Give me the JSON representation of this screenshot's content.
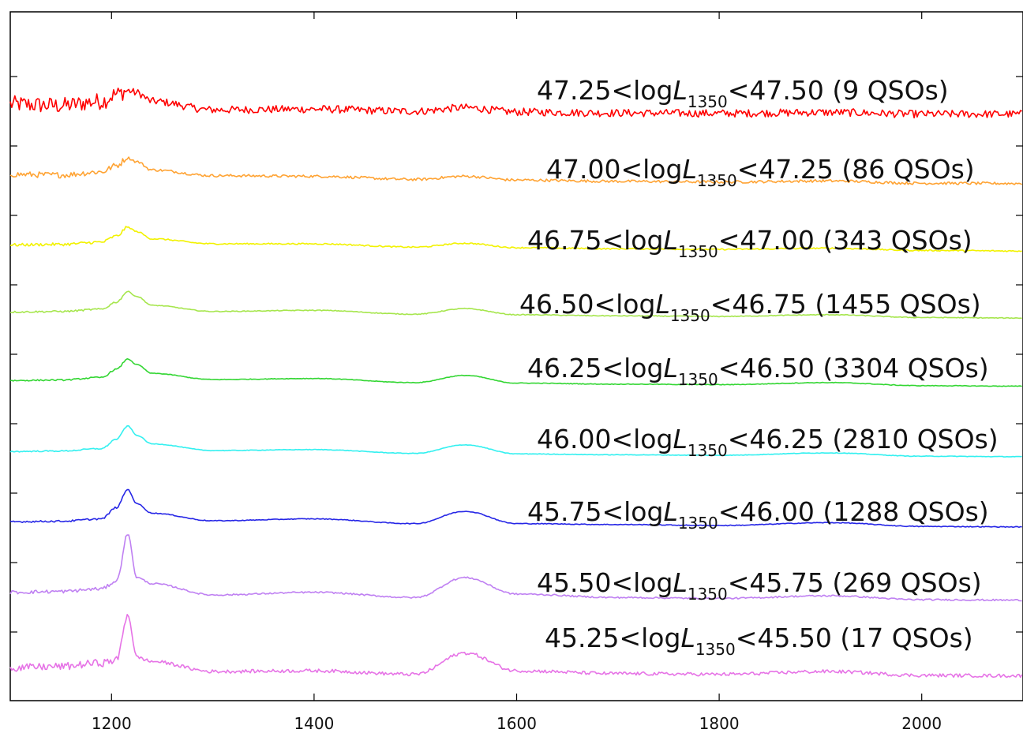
{
  "chart_data": {
    "type": "line",
    "title": "",
    "xlabel": "",
    "ylabel": "",
    "xlim": [
      1100,
      2100
    ],
    "x_ticks": [
      1200,
      1400,
      1600,
      1800,
      2000
    ],
    "x_tick_labels": [
      "1200",
      "1400",
      "1600",
      "1800",
      "2000"
    ],
    "y_ticks_count": 9,
    "y_axis_labels_shown": false,
    "grid": false,
    "legend": "inline labels beside each spectrum (right side)",
    "description": "Composite quasar spectra stacked with vertical offsets, one per luminosity bin",
    "series": [
      {
        "label_pre": "47.25<log",
        "label_var": "L",
        "label_sub": "1350",
        "label_post": "<47.50 (9 QSOs)",
        "color": "#ff0000",
        "n_qso": 9,
        "noise": 0.9,
        "x": [
          1100,
          1150,
          1190,
          1205,
          1216,
          1225,
          1240,
          1300,
          1400,
          1500,
          1549,
          1600,
          1700,
          1800,
          1909,
          2000,
          2100
        ],
        "rel_flux": [
          1.0,
          0.9,
          1.2,
          1.7,
          1.95,
          1.8,
          1.2,
          0.6,
          0.65,
          0.5,
          0.75,
          0.45,
          0.38,
          0.35,
          0.42,
          0.3,
          0.3
        ]
      },
      {
        "label_pre": "47.00<log",
        "label_var": "L",
        "label_sub": "1350",
        "label_post": "<47.25 (86 QSOs)",
        "color": "#ffa333",
        "n_qso": 86,
        "noise": 0.35,
        "x": [
          1100,
          1150,
          1190,
          1205,
          1216,
          1225,
          1240,
          1300,
          1400,
          1500,
          1549,
          1600,
          1700,
          1800,
          1909,
          2000,
          2100
        ],
        "rel_flux": [
          1.0,
          0.95,
          1.2,
          1.7,
          2.3,
          2.0,
          1.35,
          0.9,
          0.85,
          0.6,
          0.85,
          0.55,
          0.45,
          0.4,
          0.48,
          0.3,
          0.28
        ]
      },
      {
        "label_pre": "46.75<log",
        "label_var": "L",
        "label_sub": "1350",
        "label_post": "<47.00 (343 QSOs)",
        "color": "#f2f200",
        "n_qso": 343,
        "noise": 0.2,
        "x": [
          1100,
          1150,
          1190,
          1205,
          1216,
          1225,
          1240,
          1300,
          1400,
          1500,
          1549,
          1600,
          1700,
          1800,
          1909,
          2000,
          2100
        ],
        "rel_flux": [
          0.9,
          0.95,
          1.15,
          1.7,
          2.5,
          2.1,
          1.45,
          1.0,
          1.0,
          0.7,
          1.05,
          0.65,
          0.55,
          0.5,
          0.6,
          0.4,
          0.35
        ]
      },
      {
        "label_pre": "46.50<log",
        "label_var": "L",
        "label_sub": "1350",
        "label_post": "<46.75 (1455 QSOs)",
        "color": "#a6e64d",
        "n_qso": 1455,
        "noise": 0.12,
        "x": [
          1100,
          1150,
          1190,
          1205,
          1216,
          1225,
          1240,
          1300,
          1400,
          1500,
          1549,
          1600,
          1700,
          1800,
          1909,
          2000,
          2100
        ],
        "rel_flux": [
          0.9,
          0.95,
          1.15,
          1.8,
          2.75,
          2.3,
          1.5,
          0.95,
          1.05,
          0.7,
          1.2,
          0.65,
          0.55,
          0.5,
          0.65,
          0.4,
          0.35
        ]
      },
      {
        "label_pre": "46.25<log",
        "label_var": "L",
        "label_sub": "1350",
        "label_post": "<46.50 (3304 QSOs)",
        "color": "#33d633",
        "n_qso": 3304,
        "noise": 0.1,
        "x": [
          1100,
          1150,
          1190,
          1205,
          1216,
          1225,
          1240,
          1300,
          1400,
          1500,
          1549,
          1600,
          1700,
          1800,
          1909,
          2000,
          2100
        ],
        "rel_flux": [
          0.9,
          0.95,
          1.2,
          2.0,
          3.0,
          2.45,
          1.6,
          1.0,
          1.1,
          0.7,
          1.4,
          0.65,
          0.55,
          0.5,
          0.7,
          0.4,
          0.35
        ]
      },
      {
        "label_pre": "46.00<log",
        "label_var": "L",
        "label_sub": "1350",
        "label_post": "<46.25 (2810 QSOs)",
        "color": "#33f0f0",
        "n_qso": 2810,
        "noise": 0.1,
        "x": [
          1100,
          1150,
          1190,
          1205,
          1216,
          1225,
          1240,
          1300,
          1400,
          1500,
          1549,
          1600,
          1700,
          1800,
          1909,
          2000,
          2100
        ],
        "rel_flux": [
          0.9,
          0.95,
          1.2,
          2.2,
          3.6,
          2.6,
          1.7,
          1.0,
          1.1,
          0.7,
          1.6,
          0.65,
          0.55,
          0.5,
          0.75,
          0.4,
          0.35
        ]
      },
      {
        "label_pre": "45.75<log",
        "label_var": "L",
        "label_sub": "1350",
        "label_post": "<46.00 (1288 QSOs)",
        "color": "#2626e6",
        "n_qso": 1288,
        "noise": 0.14,
        "x": [
          1100,
          1150,
          1190,
          1205,
          1216,
          1225,
          1240,
          1300,
          1400,
          1500,
          1549,
          1600,
          1700,
          1800,
          1909,
          2000,
          2100
        ],
        "rel_flux": [
          0.9,
          0.95,
          1.2,
          2.4,
          4.3,
          2.8,
          1.8,
          1.0,
          1.2,
          0.7,
          2.0,
          0.7,
          0.6,
          0.5,
          0.8,
          0.4,
          0.35
        ]
      },
      {
        "label_pre": "45.50<log",
        "label_var": "L",
        "label_sub": "1350",
        "label_post": "<45.75 (269 QSOs)",
        "color": "#bf80f2",
        "n_qso": 269,
        "noise": 0.3,
        "x": [
          1100,
          1150,
          1190,
          1205,
          1216,
          1225,
          1240,
          1300,
          1400,
          1500,
          1549,
          1600,
          1700,
          1800,
          1909,
          2000,
          2100
        ],
        "rel_flux": [
          1.3,
          1.4,
          1.7,
          2.6,
          8.0,
          3.0,
          2.3,
          1.0,
          1.3,
          0.7,
          3.0,
          1.1,
          0.7,
          0.6,
          0.9,
          0.45,
          0.4
        ]
      },
      {
        "label_pre": "45.25<log",
        "label_var": "L",
        "label_sub": "1350",
        "label_post": "<45.50 (17 QSOs)",
        "color": "#e673e6",
        "n_qso": 17,
        "noise": 0.8,
        "x": [
          1100,
          1150,
          1190,
          1205,
          1216,
          1225,
          1240,
          1300,
          1400,
          1500,
          1549,
          1600,
          1700,
          1800,
          1909,
          2000,
          2100
        ],
        "rel_flux": [
          1.5,
          1.7,
          2.2,
          2.6,
          9.0,
          3.0,
          2.4,
          1.0,
          1.1,
          0.6,
          3.6,
          1.1,
          0.7,
          0.6,
          1.0,
          0.45,
          0.4
        ]
      }
    ]
  }
}
